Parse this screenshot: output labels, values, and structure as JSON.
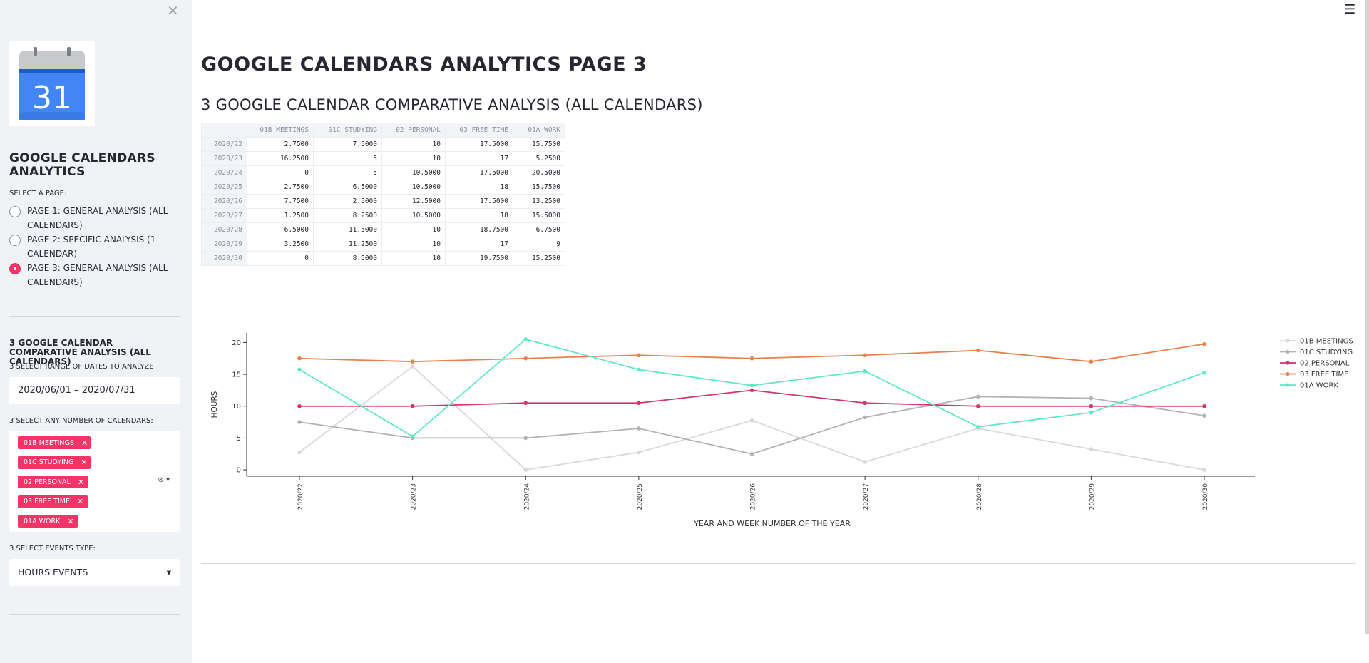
{
  "sidebar": {
    "title": "GOOGLE CALENDARS ANALYTICS",
    "logo_text": "31",
    "select_page_label": "SELECT A PAGE:",
    "pages": [
      {
        "label": "PAGE 1: GENERAL ANALYSIS (ALL CALENDARS)",
        "selected": false
      },
      {
        "label": "PAGE 2: SPECIFIC ANALYSIS (1 CALENDAR)",
        "selected": false
      },
      {
        "label": "PAGE 3: GENERAL ANALYSIS (ALL CALENDARS)",
        "selected": true
      }
    ],
    "section_title": "3 GOOGLE CALENDAR COMPARATIVE ANALYSIS (ALL CALENDARS)",
    "date_range_label": "3 SELECT RANGE OF DATES TO ANALYZE",
    "date_range_value": "2020/06/01 – 2020/07/31",
    "calendars_label": "3 SELECT ANY NUMBER OF CALENDARS:",
    "calendars": [
      "01B MEETINGS",
      "01C STUDYING",
      "02 PERSONAL",
      "03 FREE TIME",
      "01A WORK"
    ],
    "events_type_label": "3 SELECT EVENTS TYPE:",
    "events_type_value": "HOURS EVENTS"
  },
  "main": {
    "title": "GOOGLE CALENDARS ANALYTICS PAGE 3",
    "subtitle": "3 GOOGLE CALENDAR COMPARATIVE ANALYSIS (ALL CALENDARS)",
    "table": {
      "columns": [
        "01B MEETINGS",
        "01C STUDYING",
        "02 PERSONAL",
        "03 FREE TIME",
        "01A WORK"
      ],
      "rows": [
        {
          "index": "2020/22",
          "values": [
            "2.7500",
            "7.5000",
            "10",
            "17.5000",
            "15.7500"
          ]
        },
        {
          "index": "2020/23",
          "values": [
            "16.2500",
            "5",
            "10",
            "17",
            "5.2500"
          ]
        },
        {
          "index": "2020/24",
          "values": [
            "0",
            "5",
            "10.5000",
            "17.5000",
            "20.5000"
          ]
        },
        {
          "index": "2020/25",
          "values": [
            "2.7500",
            "6.5000",
            "10.5000",
            "18",
            "15.7500"
          ]
        },
        {
          "index": "2020/26",
          "values": [
            "7.7500",
            "2.5000",
            "12.5000",
            "17.5000",
            "13.2500"
          ]
        },
        {
          "index": "2020/27",
          "values": [
            "1.2500",
            "8.2500",
            "10.5000",
            "18",
            "15.5000"
          ]
        },
        {
          "index": "2020/28",
          "values": [
            "6.5000",
            "11.5000",
            "10",
            "18.7500",
            "6.7500"
          ]
        },
        {
          "index": "2020/29",
          "values": [
            "3.2500",
            "11.2500",
            "10",
            "17",
            "9"
          ]
        },
        {
          "index": "2020/30",
          "values": [
            "0",
            "8.5000",
            "10",
            "19.7500",
            "15.2500"
          ]
        }
      ]
    }
  },
  "chart_data": {
    "type": "line",
    "categories": [
      "2020/22",
      "2020/23",
      "2020/24",
      "2020/25",
      "2020/26",
      "2020/27",
      "2020/28",
      "2020/29",
      "2020/30"
    ],
    "series": [
      {
        "name": "01B MEETINGS",
        "color": "#d9d9d9",
        "values": [
          2.75,
          16.25,
          0,
          2.75,
          7.75,
          1.25,
          6.5,
          3.25,
          0
        ]
      },
      {
        "name": "01C STUDYING",
        "color": "#b3b3b3",
        "values": [
          7.5,
          5,
          5,
          6.5,
          2.5,
          8.25,
          11.5,
          11.25,
          8.5
        ]
      },
      {
        "name": "02 PERSONAL",
        "color": "#d6336c",
        "values": [
          10,
          10,
          10.5,
          10.5,
          12.5,
          10.5,
          10,
          10,
          10
        ]
      },
      {
        "name": "03 FREE TIME",
        "color": "#e8814f",
        "values": [
          17.5,
          17,
          17.5,
          18,
          17.5,
          18,
          18.75,
          17,
          19.75
        ]
      },
      {
        "name": "01A WORK",
        "color": "#5fe8c8",
        "values": [
          15.75,
          5.25,
          20.5,
          15.75,
          13.25,
          15.5,
          6.75,
          9,
          15.25
        ]
      }
    ],
    "xlabel": "YEAR AND WEEK NUMBER OF THE YEAR",
    "ylabel": "HOURS",
    "yticks": [
      0,
      5,
      10,
      15,
      20
    ],
    "ylim": [
      -1,
      21.5
    ],
    "legend_position": "right"
  }
}
